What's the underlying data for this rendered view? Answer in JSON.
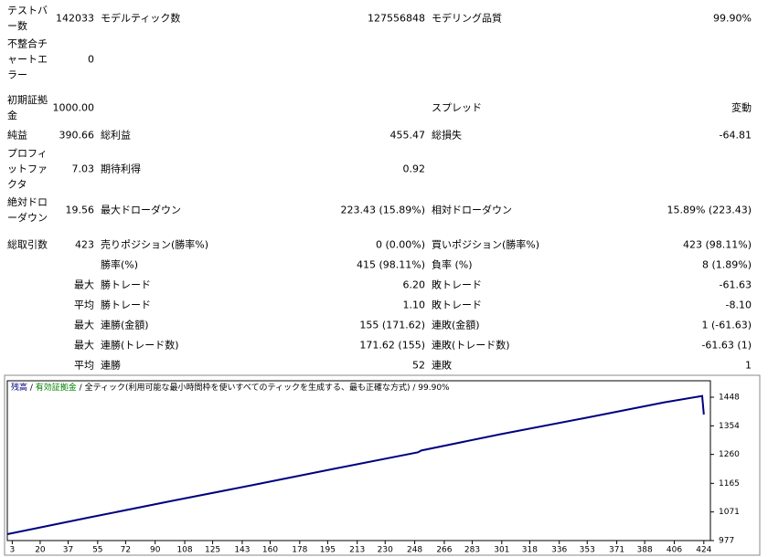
{
  "report": {
    "rows": [
      {
        "l1": "テストバー数",
        "v1": "142033",
        "l2": "モデルティック数",
        "v2": "127556848",
        "l3": "モデリング品質",
        "v3": "99.90%"
      },
      {
        "l1": "不整合チャートエラー",
        "v1": "0"
      },
      {
        "l1": "初期証拠金",
        "v1": "1000.00",
        "l3": "スプレッド",
        "v3": "変動"
      },
      {
        "l1": "純益",
        "v1": "390.66",
        "l2": "総利益",
        "v2": "455.47",
        "l3": "総損失",
        "v3": "-64.81"
      },
      {
        "l1": "プロフィットファクタ",
        "v1": "7.03",
        "l2": "期待利得",
        "v2": "0.92"
      },
      {
        "l1": "絶対ドローダウン",
        "v1": "19.56",
        "l2": "最大ドローダウン",
        "v2": "223.43 (15.89%)",
        "l3": "相対ドローダウン",
        "v3": "15.89% (223.43)"
      },
      {
        "l1": "総取引数",
        "v1": "423",
        "l2": "売りポジション(勝率%)",
        "v2": "0 (0.00%)",
        "l3": "買いポジション(勝率%)",
        "v3": "423 (98.11%)"
      },
      {
        "l2": "勝率(%)",
        "v2": "415 (98.11%)",
        "l3": "負率 (%)",
        "v3": "8 (1.89%)"
      },
      {
        "v1": "最大",
        "l2": "勝トレード",
        "v2": "6.20",
        "l3": "敗トレード",
        "v3": "-61.63"
      },
      {
        "v1": "平均",
        "l2": "勝トレード",
        "v2": "1.10",
        "l3": "敗トレード",
        "v3": "-8.10"
      },
      {
        "v1": "最大",
        "l2": "連勝(金額)",
        "v2": "155 (171.62)",
        "l3": "連敗(金額)",
        "v3": "1 (-61.63)"
      },
      {
        "v1": "最大",
        "l2": "連勝(トレード数)",
        "v2": "171.62 (155)",
        "l3": "連敗(トレード数)",
        "v3": "-61.63 (1)"
      },
      {
        "v1": "平均",
        "l2": "連勝",
        "v2": "52",
        "l3": "連敗",
        "v3": "1"
      }
    ]
  },
  "chart_data": {
    "type": "line",
    "separator": " / ",
    "equity_label": "有効証拠金",
    "equity_color": "#008000",
    "model_text": "全ティック(利用可能な最小時間枠を使いすべてのティックを生成する、最も正確な方式)",
    "quality": "99.90%",
    "series": [
      {
        "name": "残高",
        "color": "#000080",
        "x": [
          0,
          50,
          100,
          150,
          200,
          250,
          252,
          300,
          350,
          400,
          423,
          424
        ],
        "values": [
          998,
          1053,
          1107,
          1160,
          1214,
          1267,
          1273,
          1326,
          1378,
          1431,
          1452,
          1391
        ]
      }
    ],
    "xlim": [
      0,
      428
    ],
    "ylim": [
      977,
      1502
    ],
    "xticks": [
      3,
      20,
      37,
      55,
      72,
      90,
      108,
      125,
      143,
      160,
      178,
      195,
      213,
      230,
      248,
      266,
      283,
      301,
      318,
      336,
      353,
      371,
      388,
      406,
      424
    ],
    "yticks": [
      977,
      1071,
      1165,
      1260,
      1354,
      1448
    ]
  }
}
